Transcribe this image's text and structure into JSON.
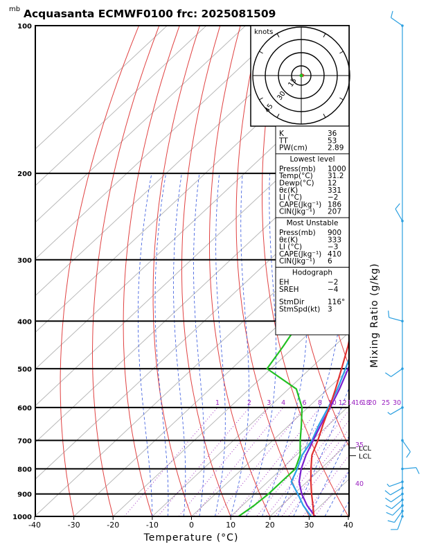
{
  "chart_data": {
    "type": "line",
    "title": "Acquasanta ECMWF0100  frc: 2025081509",
    "pressure_unit": "mb",
    "xlabel": "Temperature (°C)",
    "ylabel": "Mixing Ratio (g/kg)",
    "xlim": [
      -40,
      40
    ],
    "ylim": [
      1000,
      100
    ],
    "log_pressure": true,
    "x_ticks": [
      -40,
      -30,
      -20,
      -10,
      0,
      10,
      20,
      30,
      40
    ],
    "pressure_ticks": [
      1000,
      900,
      800,
      700,
      600,
      500,
      400,
      300,
      200,
      100
    ],
    "mixing_ratio_labels": [
      "1",
      "2",
      "3",
      "4",
      "6",
      "8",
      "10",
      "12",
      "14",
      "16",
      "18",
      "20",
      "25",
      "30"
    ],
    "theta_labels": [
      "35",
      "40"
    ],
    "lcl_labels": [
      "LCL",
      "LCL"
    ],
    "series": [
      {
        "name": "Temperature",
        "color": "#e03030",
        "points": [
          [
            1000,
            31.2
          ],
          [
            950,
            28
          ],
          [
            900,
            24.5
          ],
          [
            850,
            21
          ],
          [
            800,
            17.5
          ],
          [
            750,
            14
          ],
          [
            700,
            11.5
          ],
          [
            650,
            8.5
          ],
          [
            600,
            5.5
          ],
          [
            550,
            2
          ],
          [
            500,
            -2
          ],
          [
            450,
            -6.5
          ],
          [
            400,
            -12
          ],
          [
            350,
            -18.5
          ],
          [
            300,
            -26
          ],
          [
            250,
            -34.5
          ],
          [
            200,
            -43.5
          ],
          [
            150,
            -52
          ],
          [
            120,
            -56.5
          ],
          [
            100,
            -60
          ]
        ]
      },
      {
        "name": "Dewpoint",
        "color": "#22c022",
        "points": [
          [
            1000,
            12
          ],
          [
            950,
            13
          ],
          [
            900,
            13.5
          ],
          [
            850,
            13.5
          ],
          [
            800,
            13.5
          ],
          [
            750,
            11
          ],
          [
            700,
            7
          ],
          [
            650,
            3
          ],
          [
            600,
            -1.5
          ],
          [
            550,
            -8
          ],
          [
            500,
            -21
          ],
          [
            450,
            -23
          ],
          [
            400,
            -25.5
          ],
          [
            350,
            -35
          ],
          [
            300,
            -45.5
          ],
          [
            250,
            -56.5
          ],
          [
            200,
            -64
          ],
          [
            150,
            -71
          ],
          [
            120,
            -74.5
          ],
          [
            100,
            -77
          ]
        ]
      },
      {
        "name": "Parcel",
        "color": "#7a1fd0",
        "points": [
          [
            1000,
            31.5
          ],
          [
            950,
            26.5
          ],
          [
            900,
            22
          ],
          [
            850,
            18
          ],
          [
            800,
            15
          ],
          [
            750,
            12.5
          ],
          [
            700,
            10.3
          ],
          [
            650,
            8
          ],
          [
            600,
            5.7
          ],
          [
            550,
            3
          ],
          [
            500,
            -0.3
          ],
          [
            450,
            -4.3
          ],
          [
            400,
            -9.3
          ],
          [
            350,
            -15.5
          ],
          [
            300,
            -23
          ],
          [
            250,
            -32.5
          ],
          [
            200,
            -45
          ],
          [
            150,
            -62
          ],
          [
            120,
            -74
          ],
          [
            110,
            -78
          ]
        ]
      },
      {
        "name": "Virtual parcel",
        "color": "#2aa0e8",
        "points": [
          [
            1000,
            30.5
          ],
          [
            950,
            25.5
          ],
          [
            900,
            21
          ],
          [
            850,
            16
          ],
          [
            800,
            14
          ],
          [
            750,
            11.5
          ],
          [
            700,
            10
          ],
          [
            650,
            7.5
          ],
          [
            600,
            5.2
          ],
          [
            550,
            2.5
          ],
          [
            500,
            -1
          ],
          [
            450,
            -5
          ],
          [
            400,
            -10.5
          ],
          [
            350,
            -17
          ],
          [
            300,
            -25
          ],
          [
            250,
            -35
          ],
          [
            200,
            -47.5
          ],
          [
            150,
            -64.5
          ],
          [
            120,
            -76
          ],
          [
            110,
            -80
          ]
        ]
      }
    ],
    "hodograph": {
      "unit_label": "knots",
      "ring_labels": [
        "15",
        "30",
        "45"
      ]
    },
    "wind_barbs": [
      {
        "p": 1000,
        "dir": 200,
        "kt": 10
      },
      {
        "p": 975,
        "dir": 215,
        "kt": 10
      },
      {
        "p": 950,
        "dir": 225,
        "kt": 10
      },
      {
        "p": 925,
        "dir": 230,
        "kt": 10
      },
      {
        "p": 900,
        "dir": 235,
        "kt": 10
      },
      {
        "p": 875,
        "dir": 240,
        "kt": 10
      },
      {
        "p": 850,
        "dir": 250,
        "kt": 5
      },
      {
        "p": 800,
        "dir": 85,
        "kt": 10
      },
      {
        "p": 700,
        "dir": 145,
        "kt": 10
      },
      {
        "p": 600,
        "dir": 240,
        "kt": 5
      },
      {
        "p": 500,
        "dir": 235,
        "kt": 10
      },
      {
        "p": 400,
        "dir": 285,
        "kt": 10
      },
      {
        "p": 250,
        "dir": 330,
        "kt": 10
      },
      {
        "p": 100,
        "dir": 305,
        "kt": 10
      }
    ]
  },
  "stats": {
    "general": [
      {
        "label": "K",
        "value": "36"
      },
      {
        "label": "TT",
        "value": "53"
      },
      {
        "label": "PW(cm)",
        "value": "2.89"
      }
    ],
    "lowest_level_title": "Lowest level",
    "lowest_level": [
      {
        "label": "Press(mb)",
        "value": "1000"
      },
      {
        "label": "Temp(°C)",
        "value": "31.2"
      },
      {
        "label": "Dewp(°C)",
        "value": "12"
      },
      {
        "label": "θε(K)",
        "value": "331"
      },
      {
        "label": "LI (°C)",
        "value": "−2"
      },
      {
        "label": "CAPE(Jkg⁻¹)",
        "value": "186"
      },
      {
        "label": "CIN(Jkg⁻¹)",
        "value": "207"
      }
    ],
    "most_unstable_title": "Most Unstable",
    "most_unstable": [
      {
        "label": "Press(mb)",
        "value": "900"
      },
      {
        "label": "θε(K)",
        "value": "333"
      },
      {
        "label": "LI (°C)",
        "value": "−3"
      },
      {
        "label": "CAPE(Jkg⁻¹)",
        "value": "410"
      },
      {
        "label": "CIN(Jkg⁻¹)",
        "value": "6"
      }
    ],
    "hodograph_title": "Hodograph",
    "hodograph": [
      {
        "label": "EH",
        "value": "−2"
      },
      {
        "label": "SREH",
        "value": "−4"
      },
      {
        "label": "StmDir",
        "value": "116°"
      },
      {
        "label": "StmSpd(kt)",
        "value": "3"
      }
    ]
  }
}
